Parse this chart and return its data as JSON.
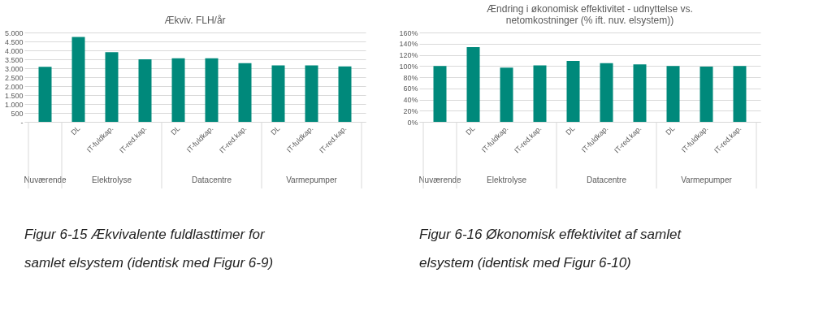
{
  "chart_data": [
    {
      "type": "bar",
      "title": "Ækviv. FLH/år",
      "categories": [
        null,
        "DL",
        "IT-fuldkap.",
        "IT-red.kap.",
        "DL",
        "IT-fuldkap.",
        "IT-red.kap.",
        "DL",
        "IT-fuldkap.",
        "IT-red.kap."
      ],
      "values": [
        3080,
        4750,
        3900,
        3500,
        3560,
        3560,
        3280,
        3160,
        3160,
        3100
      ],
      "color": "#00897b",
      "ylim": [
        0,
        5000
      ],
      "yticks": [
        {
          "value": 0,
          "label": "-"
        },
        {
          "value": 500,
          "label": "500"
        },
        {
          "value": 1000,
          "label": "1.000"
        },
        {
          "value": 1500,
          "label": "1.500"
        },
        {
          "value": 2000,
          "label": "2.000"
        },
        {
          "value": 2500,
          "label": "2.500"
        },
        {
          "value": 3000,
          "label": "3.000"
        },
        {
          "value": 3500,
          "label": "3.500"
        },
        {
          "value": 4000,
          "label": "4.000"
        },
        {
          "value": 4500,
          "label": "4.500"
        },
        {
          "value": 5000,
          "label": "5.000"
        }
      ],
      "grid": "y",
      "annotations": [
        "Nuværende",
        "Elektrolyse",
        "Datacentre",
        "Varmepumper",
        "Figur 6-15 Ækvivalente fuldlasttimer for samlet elsystem (identisk med Figur 6-9)"
      ]
    },
    {
      "type": "bar",
      "title": "Ændring i økonomisk effektivitet - udnyttelse vs. netomkostninger (% ift. nuv. elsystem))",
      "categories": [
        null,
        "DL",
        "IT-fuldkap.",
        "IT-red.kap.",
        "DL",
        "IT-fuldkap.",
        "IT-red.kap.",
        "DL",
        "IT-fuldkap.",
        "IT-red.kap."
      ],
      "values": [
        100,
        134,
        97,
        101,
        109,
        105,
        103,
        100,
        99,
        100
      ],
      "color": "#00897b",
      "ylim": [
        0,
        160
      ],
      "yticks": [
        {
          "value": 0,
          "label": "0%"
        },
        {
          "value": 20,
          "label": "20%"
        },
        {
          "value": 40,
          "label": "40%"
        },
        {
          "value": 60,
          "label": "60%"
        },
        {
          "value": 80,
          "label": "80%"
        },
        {
          "value": 100,
          "label": "100%"
        },
        {
          "value": 120,
          "label": "120%"
        },
        {
          "value": 140,
          "label": "140%"
        },
        {
          "value": 160,
          "label": "160%"
        }
      ],
      "grid": "y",
      "annotations": [
        "Nuværende",
        "Elektrolyse",
        "Datacentre",
        "Varmepumper",
        "Figur 6-16 Økonomisk effektivitet af samlet elsystem (identisk med Figur 6-10)"
      ]
    }
  ]
}
